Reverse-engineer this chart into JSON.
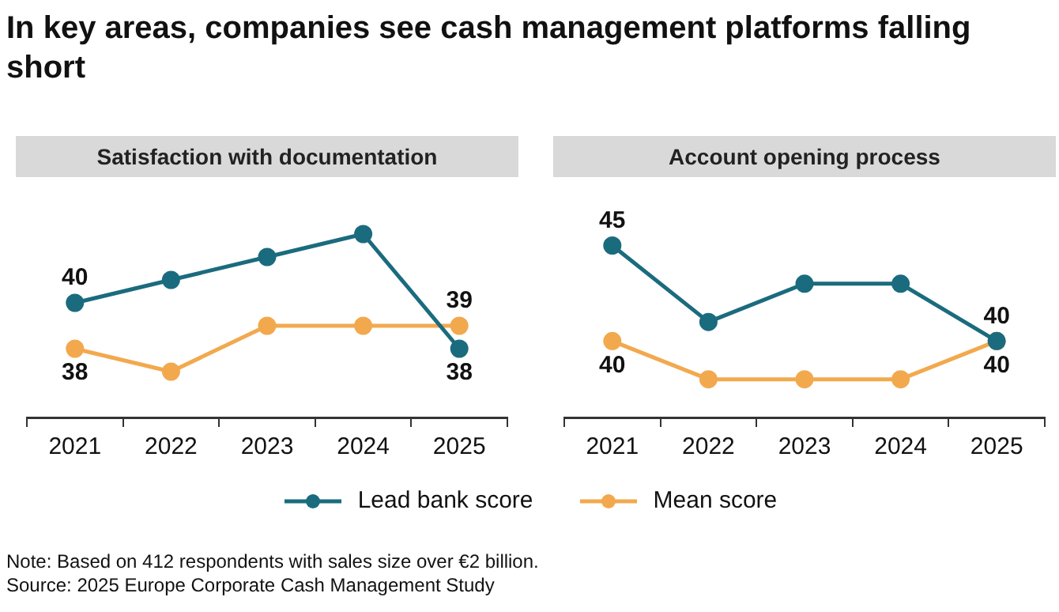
{
  "chart_data": [
    {
      "type": "line",
      "title": "Satisfaction with documentation",
      "categories": [
        "2021",
        "2022",
        "2023",
        "2024",
        "2025"
      ],
      "series": [
        {
          "name": "Lead bank score",
          "color": "#1b6b7e",
          "values": [
            40,
            41,
            42,
            43,
            38
          ],
          "value_labels": [
            "40",
            null,
            null,
            null,
            "38"
          ]
        },
        {
          "name": "Mean score",
          "color": "#f2a94e",
          "values": [
            38,
            37,
            39,
            39,
            39
          ],
          "value_labels": [
            "38",
            null,
            null,
            null,
            "39"
          ]
        }
      ],
      "tick_labels": "x",
      "grid": false,
      "marker": "circle",
      "legend": "bottom",
      "annotations": [
        "In key areas, companies see cash management platforms falling short",
        "Note: Based on 412 respondents with sales size over €2 billion.",
        "Source: 2025 Europe Corporate Cash Management Study"
      ]
    },
    {
      "type": "line",
      "title": "Account opening process",
      "categories": [
        "2021",
        "2022",
        "2023",
        "2024",
        "2025"
      ],
      "series": [
        {
          "color": "#1b6b7e",
          "values": [
            45,
            41,
            43,
            43,
            40
          ],
          "value_labels": [
            "45",
            null,
            null,
            null,
            "40"
          ]
        },
        {
          "color": "#f2a94e",
          "values": [
            40,
            38,
            38,
            38,
            40
          ],
          "value_labels": [
            "40",
            null,
            null,
            null,
            "40"
          ]
        }
      ],
      "tick_labels": "x",
      "grid": false,
      "marker": "circle"
    }
  ]
}
